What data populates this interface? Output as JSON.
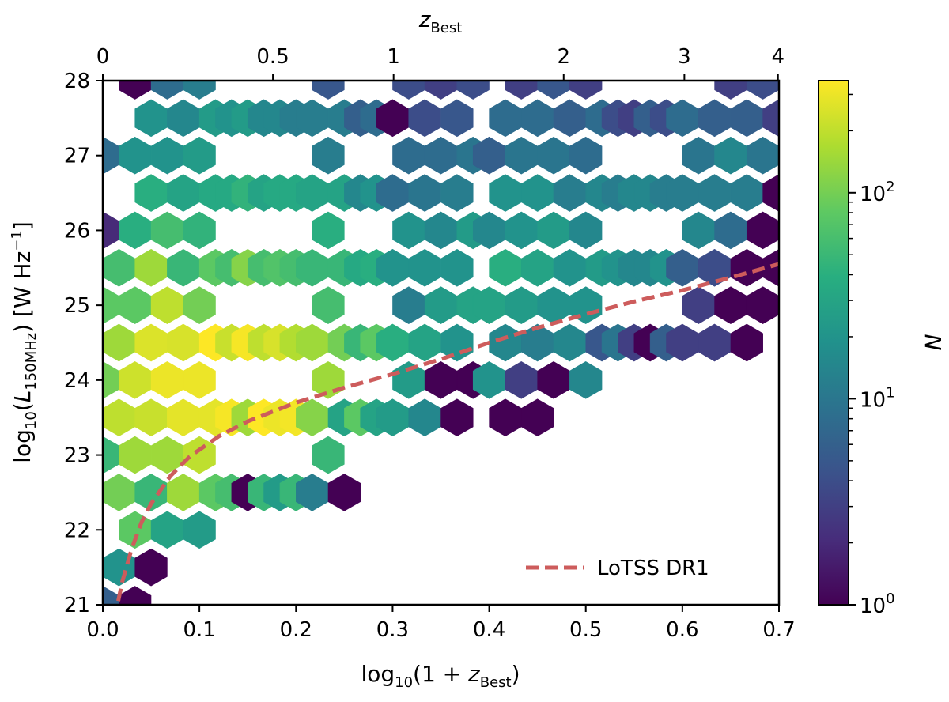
{
  "chart_data": {
    "type": "heatmap",
    "subtype": "hexbin",
    "title": "",
    "xlabel": {
      "prefix": "log",
      "base": "10",
      "open": "(1 + ",
      "var": "z",
      "sub": "Best",
      "close": ")"
    },
    "ylabel": {
      "prefix": "log",
      "base": "10",
      "open": "(",
      "var": "L",
      "sub": "150MHz",
      "close": ") [W Hz",
      "exp": "−1",
      "end": "]"
    },
    "top_xlabel": {
      "var": "z",
      "sub": "Best"
    },
    "xlim": [
      0.0,
      0.7
    ],
    "ylim": [
      21,
      28
    ],
    "xticks": [
      0.0,
      0.1,
      0.2,
      0.3,
      0.4,
      0.5,
      0.6,
      0.7
    ],
    "xtick_labels": [
      "0.0",
      "0.1",
      "0.2",
      "0.3",
      "0.4",
      "0.5",
      "0.6",
      "0.7"
    ],
    "yticks": [
      21,
      22,
      23,
      24,
      25,
      26,
      27,
      28
    ],
    "ytick_labels": [
      "21",
      "22",
      "23",
      "24",
      "25",
      "26",
      "27",
      "28"
    ],
    "top_ticks": [
      0,
      0.5,
      1,
      2,
      3,
      4
    ],
    "top_tick_labels": [
      "0",
      "0.5",
      "1",
      "2",
      "3",
      "4"
    ],
    "colorbar": {
      "label": "N",
      "scale": "log",
      "colormap": "viridis",
      "range": [
        1,
        350
      ],
      "ticks": [
        {
          "base": "10",
          "exp": "0",
          "value": 1
        },
        {
          "base": "10",
          "exp": "1",
          "value": 10
        },
        {
          "base": "10",
          "exp": "2",
          "value": 100
        }
      ]
    },
    "grid": false,
    "legend": {
      "placement": "lower-right",
      "entries": [
        {
          "label": "LoTSS DR1",
          "color": "#cd5c5c",
          "style": "dashed"
        }
      ]
    },
    "series": [
      {
        "name": "LoTSS DR1",
        "type": "line",
        "style": "dashed",
        "color": "#cd5c5c",
        "x": [
          0.016,
          0.02,
          0.03,
          0.04,
          0.05,
          0.07,
          0.09,
          0.12,
          0.15,
          0.2,
          0.25,
          0.3,
          0.35,
          0.4,
          0.45,
          0.5,
          0.55,
          0.6,
          0.65,
          0.7
        ],
        "y": [
          21.05,
          21.3,
          21.75,
          22.1,
          22.35,
          22.72,
          22.98,
          23.25,
          23.45,
          23.7,
          23.9,
          24.08,
          24.28,
          24.5,
          24.7,
          24.88,
          25.05,
          25.2,
          25.37,
          25.55
        ]
      }
    ],
    "hexbins": {
      "bin_width_x": 0.0333,
      "columns": [
        {
          "x": 0.0,
          "y0": 21.0,
          "counts": [
            6,
            0,
            50,
            100,
            80,
            2,
            8,
            0,
            0,
            0
          ]
        },
        {
          "x": 0.0167,
          "y0": 21.5,
          "counts": [
            20,
            100,
            200,
            150,
            60,
            0,
            0,
            0
          ]
        },
        {
          "x": 0.0333,
          "y0": 21.0,
          "counts": [
            1,
            80,
            150,
            230,
            80,
            40,
            20,
            1,
            0,
            0
          ]
        },
        {
          "x": 0.05,
          "y0": 21.5,
          "counts": [
            1,
            50,
            220,
            260,
            150,
            40,
            20,
            1,
            1,
            0
          ]
        },
        {
          "x": 0.0667,
          "y0": 22.0,
          "counts": [
            30,
            150,
            300,
            200,
            60,
            20,
            8,
            3,
            1
          ]
        },
        {
          "x": 0.0833,
          "y0": 22.5,
          "counts": [
            150,
            280,
            250,
            50,
            30,
            15,
            6,
            1
          ]
        },
        {
          "x": 0.1,
          "y0": 22.0,
          "counts": [
            25,
            200,
            300,
            100,
            45,
            25,
            12,
            6,
            3,
            1,
            0,
            0
          ]
        },
        {
          "x": 0.1167,
          "y0": 22.5,
          "counts": [
            80,
            280,
            350,
            80,
            35,
            25,
            12,
            5,
            2,
            1
          ]
        },
        {
          "x": 0.1333,
          "y0": 22.5,
          "counts": [
            60,
            330,
            220,
            60,
            35,
            20,
            10,
            4,
            1,
            1,
            0
          ]
        },
        {
          "x": 0.15,
          "y0": 22.5,
          "counts": [
            1,
            150,
            330,
            120,
            45,
            25,
            12,
            5,
            2,
            1,
            0
          ]
        },
        {
          "x": 0.1667,
          "y0": 22.5,
          "counts": [
            50,
            350,
            200,
            60,
            30,
            15,
            6,
            3,
            1,
            0,
            0
          ]
        },
        {
          "x": 0.1833,
          "y0": 22.5,
          "counts": [
            25,
            300,
            250,
            70,
            35,
            15,
            8,
            0,
            1,
            1
          ]
        },
        {
          "x": 0.2,
          "y0": 22.5,
          "counts": [
            50,
            320,
            180,
            60,
            35,
            12,
            6,
            0,
            1,
            2,
            0
          ]
        },
        {
          "x": 0.2167,
          "y0": 22.5,
          "counts": [
            12,
            120,
            150,
            50,
            30,
            12,
            5,
            2,
            1
          ]
        },
        {
          "x": 0.2333,
          "y0": 23.0,
          "counts": [
            50,
            150,
            60,
            40,
            12,
            5,
            3,
            1,
            0,
            0
          ]
        },
        {
          "x": 0.25,
          "y0": 22.5,
          "counts": [
            1,
            30,
            100,
            50,
            30,
            12,
            6,
            3,
            1,
            0,
            0
          ]
        },
        {
          "x": 0.2667,
          "y0": 23.5,
          "counts": [
            80,
            50,
            35,
            15,
            6,
            2,
            1,
            0,
            0
          ]
        },
        {
          "x": 0.2833,
          "y0": 23.5,
          "counts": [
            30,
            80,
            40,
            20,
            8,
            4,
            1,
            0,
            0,
            0
          ]
        },
        {
          "x": 0.3,
          "y0": 23.5,
          "counts": [
            25,
            40,
            20,
            8,
            1,
            3,
            1,
            0,
            0
          ]
        },
        {
          "x": 0.3167,
          "y0": 24.0,
          "counts": [
            25,
            12,
            20,
            8,
            4,
            0,
            1,
            1,
            0,
            0
          ]
        },
        {
          "x": 0.3333,
          "y0": 23.5,
          "counts": [
            15,
            30,
            20,
            10,
            4,
            1,
            0,
            1,
            1
          ]
        },
        {
          "x": 0.35,
          "y0": 24.0,
          "counts": [
            1,
            25,
            15,
            8,
            3,
            0,
            1,
            1,
            1,
            1
          ]
        },
        {
          "x": 0.3667,
          "y0": 23.5,
          "counts": [
            1,
            20,
            20,
            12,
            5,
            2,
            1,
            1,
            1
          ]
        },
        {
          "x": 0.3833,
          "y0": 24.0,
          "counts": [
            1,
            30,
            25,
            10,
            4,
            2,
            1,
            0,
            0
          ]
        },
        {
          "x": 0.4,
          "y0": 24.0,
          "counts": [
            20,
            30,
            15,
            6,
            0,
            1,
            1,
            0,
            0
          ]
        },
        {
          "x": 0.4167,
          "y0": 23.5,
          "counts": [
            1,
            15,
            40,
            20,
            8,
            1,
            2,
            1,
            0
          ]
        },
        {
          "x": 0.4333,
          "y0": 24.0,
          "counts": [
            3,
            25,
            20,
            10,
            3,
            1,
            0,
            1
          ]
        },
        {
          "x": 0.45,
          "y0": 23.5,
          "counts": [
            1,
            12,
            30,
            20,
            8,
            1,
            1,
            0,
            0,
            1
          ]
        },
        {
          "x": 0.4667,
          "y0": 24.0,
          "counts": [
            1,
            20,
            25,
            10,
            5,
            2,
            0,
            0
          ]
        },
        {
          "x": 0.4833,
          "y0": 24.5,
          "counts": [
            15,
            20,
            12,
            6,
            2,
            1,
            0
          ]
        },
        {
          "x": 0.5,
          "y0": 24.0,
          "counts": [
            15,
            20,
            15,
            8,
            3,
            1,
            0,
            0
          ]
        },
        {
          "x": 0.5167,
          "y0": 24.5,
          "counts": [
            5,
            25,
            15,
            8,
            1,
            1,
            1
          ]
        },
        {
          "x": 0.5333,
          "y0": 24.5,
          "counts": [
            10,
            20,
            12,
            4,
            1,
            1,
            0,
            0
          ]
        },
        {
          "x": 0.55,
          "y0": 24.5,
          "counts": [
            3,
            15,
            15,
            3,
            1,
            1,
            0,
            0
          ]
        },
        {
          "x": 0.5667,
          "y0": 24.5,
          "counts": [
            1,
            15,
            15,
            6,
            0,
            1,
            0
          ]
        },
        {
          "x": 0.5833,
          "y0": 24.5,
          "counts": [
            6,
            20,
            12,
            4,
            1,
            1,
            0,
            1
          ]
        },
        {
          "x": 0.6,
          "y0": 24.5,
          "counts": [
            3,
            6,
            12,
            8,
            1,
            1,
            0,
            0
          ]
        },
        {
          "x": 0.6167,
          "y0": 25.0,
          "counts": [
            3,
            15,
            10,
            0,
            1,
            0,
            1
          ]
        },
        {
          "x": 0.6333,
          "y0": 24.5,
          "counts": [
            3,
            4,
            12,
            6,
            0,
            4,
            0,
            0
          ]
        },
        {
          "x": 0.65,
          "y0": 25.0,
          "counts": [
            1,
            8,
            15,
            3,
            1,
            1
          ]
        },
        {
          "x": 0.6667,
          "y0": 24.5,
          "counts": [
            1,
            1,
            12,
            6,
            1,
            1,
            0
          ]
        },
        {
          "x": 0.6833,
          "y0": 25.0,
          "counts": [
            1,
            1,
            10,
            4,
            1,
            1
          ]
        },
        {
          "x": 0.7,
          "y0": 24.5,
          "counts": [
            0,
            1,
            1,
            3,
            1,
            1
          ]
        }
      ]
    }
  }
}
